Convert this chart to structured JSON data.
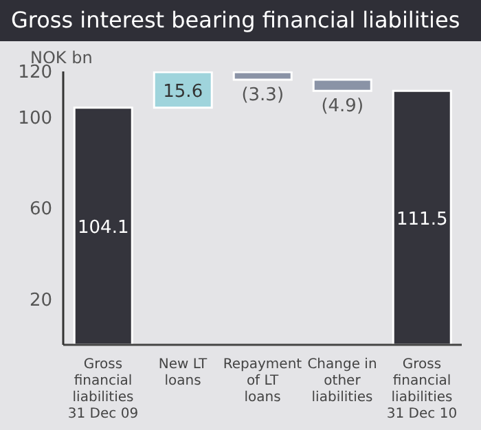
{
  "chart_data": {
    "type": "bar",
    "title": "Gross interest bearing financial liabilities",
    "ylabel": "NOK bn",
    "categories": [
      "Gross financial liabilities 31 Dec 09",
      "New LT loans",
      "Repayment of LT loans",
      "Change in other liabilities",
      "Gross financial liabilities 31 Dec 10"
    ],
    "values": [
      104.1,
      15.6,
      -3.3,
      -4.9,
      111.5
    ],
    "base": [
      0,
      104.1,
      119.7,
      116.4,
      0
    ],
    "colors": [
      "#34343c",
      "#9fd4dc",
      "#8a93a6",
      "#8a93a6",
      "#34343c"
    ],
    "value_labels": [
      "104.1",
      "15.6",
      "(3.3)",
      "(4.9)",
      "111.5"
    ],
    "ylim": [
      0,
      120
    ],
    "yticks": [
      20,
      60,
      100,
      120
    ]
  }
}
